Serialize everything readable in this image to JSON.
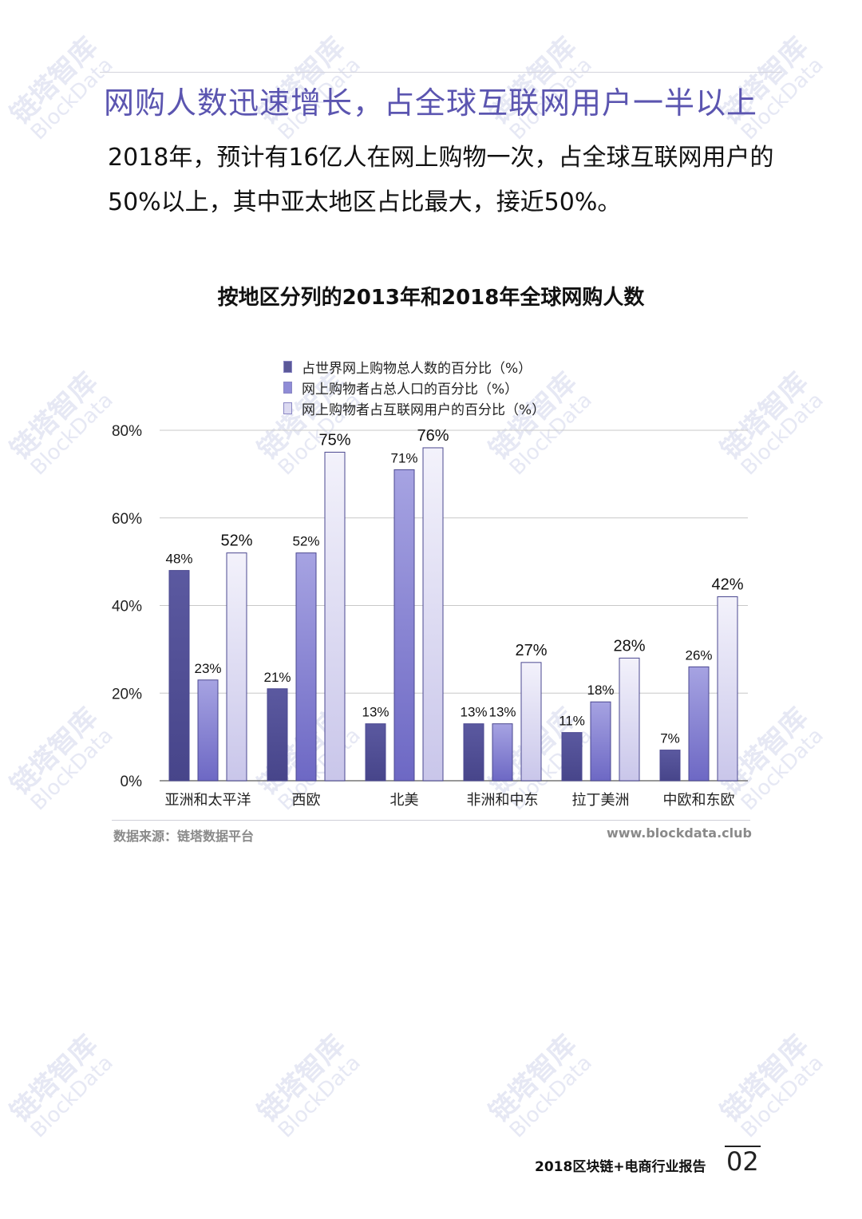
{
  "watermark": {
    "main": "链塔智库",
    "sub": "BlockData"
  },
  "headline": "网购人数迅速增长，占全球互联网用户一半以上",
  "intro": "2018年，预计有16亿人在网上购物一次，占全球互联网用户的50%以上，其中亚太地区占比最大，接近50%。",
  "chart_data": {
    "type": "bar",
    "title": "按地区分列的2013年和2018年全球网购人数",
    "xlabel": "",
    "ylabel": "",
    "ylim": [
      0,
      80
    ],
    "yticks": [
      "0%",
      "20%",
      "40%",
      "60%",
      "80%"
    ],
    "categories": [
      "亚洲和太平洋",
      "西欧",
      "北美",
      "非洲和中东",
      "拉丁美洲",
      "中欧和东欧"
    ],
    "series": [
      {
        "name": "占世界网上购物总人数的百分比（%）",
        "values": [
          48,
          21,
          13,
          13,
          11,
          7
        ],
        "labels": [
          "48%",
          "21%",
          "13%",
          "13%",
          "11%",
          "7%"
        ],
        "color": "#5a5898"
      },
      {
        "name": "网上购物者占总人口的百分比（%）",
        "values": [
          23,
          52,
          71,
          13,
          18,
          26
        ],
        "labels": [
          "23%",
          "52%",
          "71%",
          "13%",
          "18%",
          "26%"
        ],
        "color": "#8f8cd6"
      },
      {
        "name": "网上购物者占互联网用户的百分比（%）",
        "values": [
          52,
          75,
          76,
          27,
          28,
          42
        ],
        "labels": [
          "52%",
          "75%",
          "76%",
          "27%",
          "28%",
          "42%"
        ],
        "color": "#dcdaf1"
      }
    ],
    "grid": true,
    "legend": "top"
  },
  "source": "数据来源：链塔数据平台",
  "site": "www.blockdata.club",
  "footer": {
    "title": "2018区块链+电商行业报告",
    "page": "02"
  }
}
